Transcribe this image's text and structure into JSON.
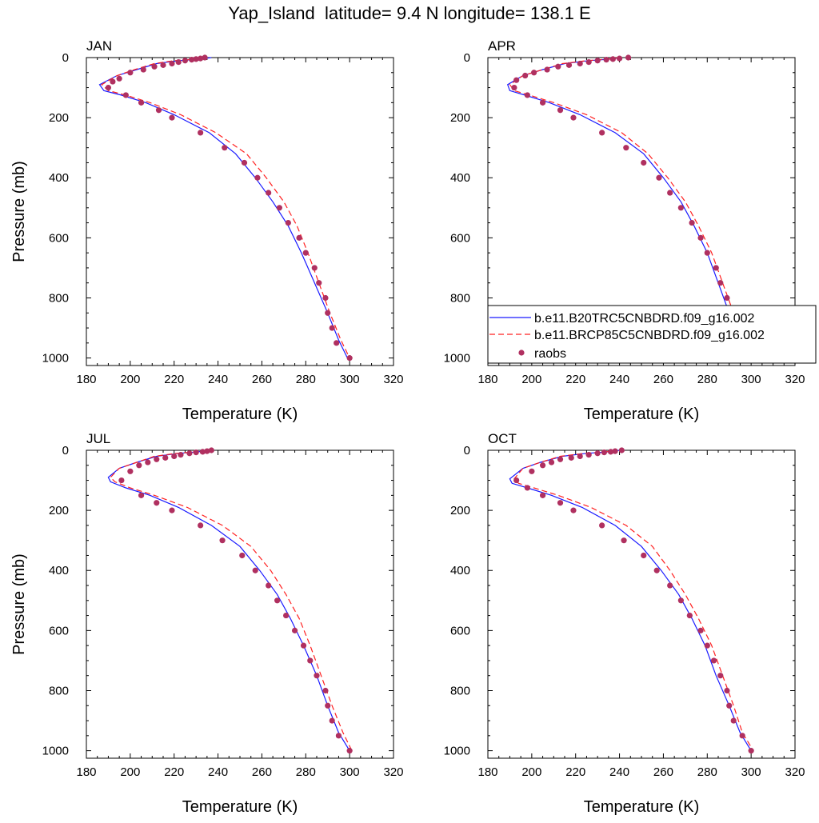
{
  "figure": {
    "title": "Yap_Island  latitude= 9.4 N longitude= 138.1 E"
  },
  "legend": {
    "placement": "inside APR panel, lower-right",
    "entries": [
      {
        "label": "b.e11.B20TRC5CNBDRD.f09_g16.002",
        "style": "solid-line",
        "color": "#1a1aff"
      },
      {
        "label": "b.e11.BRCP85C5CNBDRD.f09_g16.002",
        "style": "dashed-line",
        "color": "#ff2020"
      },
      {
        "label": "raobs",
        "style": "dot",
        "color": "#b03060"
      }
    ]
  },
  "chart_data": [
    {
      "type": "line",
      "panel_label": "JAN",
      "xlabel": "Temperature (K)",
      "ylabel": "Pressure (mb)",
      "xlim": [
        180,
        320
      ],
      "ylim": [
        1025,
        0
      ],
      "xticks": [
        180,
        200,
        220,
        240,
        260,
        280,
        300,
        320
      ],
      "yticks": [
        0,
        200,
        400,
        600,
        800,
        1000
      ],
      "grid": false,
      "series": [
        {
          "name": "b.e11.B20TRC5CNBDRD.f09_g16.002",
          "style": "solid",
          "color": "#1a1aff",
          "x": [
            237,
            232,
            222,
            212,
            203,
            194,
            186,
            188,
            196,
            207,
            220,
            236,
            248,
            257,
            265,
            272,
            278,
            284,
            290,
            295,
            299
          ],
          "y": [
            0,
            5,
            10,
            20,
            40,
            60,
            90,
            110,
            125,
            150,
            190,
            250,
            320,
            400,
            480,
            560,
            650,
            750,
            850,
            940,
            1000
          ]
        },
        {
          "name": "b.e11.BRCP85C5CNBDRD.f09_g16.002",
          "style": "dashed",
          "color": "#ff2020",
          "x": [
            235,
            230,
            220,
            211,
            202,
            194,
            187,
            190,
            198,
            209,
            223,
            239,
            253,
            262,
            270,
            276,
            281,
            286,
            291,
            296,
            300
          ],
          "y": [
            0,
            5,
            10,
            20,
            40,
            60,
            90,
            110,
            125,
            150,
            190,
            250,
            320,
            400,
            480,
            560,
            650,
            750,
            850,
            940,
            1000
          ]
        },
        {
          "name": "raobs",
          "style": "points",
          "color": "#b03060",
          "x": [
            234,
            232,
            230,
            228,
            225,
            222,
            219,
            215,
            211,
            206,
            200,
            195,
            192,
            190,
            198,
            205,
            213,
            219,
            232,
            243,
            252,
            258,
            263,
            268,
            272,
            277,
            280,
            284,
            286,
            289,
            290,
            292,
            294,
            300
          ],
          "y": [
            0,
            3,
            5,
            7,
            10,
            15,
            20,
            25,
            30,
            40,
            50,
            70,
            80,
            100,
            125,
            150,
            175,
            200,
            250,
            300,
            350,
            400,
            450,
            500,
            550,
            600,
            650,
            700,
            750,
            800,
            850,
            900,
            950,
            1000
          ]
        }
      ]
    },
    {
      "type": "line",
      "panel_label": "APR",
      "xlabel": "Temperature (K)",
      "ylabel": "",
      "xlim": [
        180,
        320
      ],
      "ylim": [
        1025,
        0
      ],
      "xticks": [
        180,
        200,
        220,
        240,
        260,
        280,
        300,
        320
      ],
      "yticks": [
        0,
        200,
        400,
        600,
        800,
        1000
      ],
      "grid": false,
      "series": [
        {
          "name": "b.e11.B20TRC5CNBDRD.f09_g16.002",
          "style": "solid",
          "color": "#1a1aff",
          "x": [
            241,
            236,
            226,
            215,
            205,
            196,
            189,
            190,
            197,
            208,
            222,
            238,
            251,
            260,
            268,
            274,
            280,
            285,
            290,
            295,
            300
          ],
          "y": [
            0,
            5,
            10,
            20,
            40,
            60,
            90,
            110,
            125,
            150,
            190,
            250,
            320,
            400,
            480,
            560,
            650,
            750,
            850,
            940,
            1000
          ]
        },
        {
          "name": "b.e11.BRCP85C5CNBDRD.f09_g16.002",
          "style": "dashed",
          "color": "#ff2020",
          "x": [
            240,
            235,
            225,
            214,
            205,
            196,
            190,
            192,
            199,
            210,
            225,
            241,
            253,
            262,
            270,
            276,
            282,
            287,
            292,
            296,
            300
          ],
          "y": [
            0,
            5,
            10,
            20,
            40,
            60,
            90,
            110,
            125,
            150,
            190,
            250,
            320,
            400,
            480,
            560,
            650,
            750,
            850,
            940,
            1000
          ]
        },
        {
          "name": "raobs",
          "style": "points",
          "color": "#b03060",
          "x": [
            244,
            240,
            237,
            234,
            230,
            226,
            222,
            217,
            212,
            207,
            201,
            197,
            193,
            192,
            198,
            205,
            213,
            219,
            232,
            243,
            251,
            258,
            263,
            268,
            273,
            277,
            280,
            284,
            286,
            289,
            290,
            292,
            296,
            300
          ],
          "y": [
            0,
            3,
            5,
            7,
            10,
            15,
            20,
            25,
            30,
            40,
            50,
            60,
            75,
            100,
            125,
            150,
            175,
            200,
            250,
            300,
            350,
            400,
            450,
            500,
            550,
            600,
            650,
            700,
            750,
            800,
            850,
            900,
            950,
            1000
          ]
        }
      ]
    },
    {
      "type": "line",
      "panel_label": "JUL",
      "xlabel": "Temperature (K)",
      "ylabel": "Pressure (mb)",
      "xlim": [
        180,
        320
      ],
      "ylim": [
        1025,
        0
      ],
      "xticks": [
        180,
        200,
        220,
        240,
        260,
        280,
        300,
        320
      ],
      "yticks": [
        0,
        200,
        400,
        600,
        800,
        1000
      ],
      "grid": false,
      "series": [
        {
          "name": "b.e11.B20TRC5CNBDRD.f09_g16.002",
          "style": "solid",
          "color": "#1a1aff",
          "x": [
            236,
            231,
            222,
            212,
            203,
            195,
            190,
            191,
            198,
            209,
            222,
            237,
            250,
            259,
            267,
            273,
            279,
            285,
            290,
            295,
            300
          ],
          "y": [
            0,
            5,
            10,
            20,
            40,
            60,
            90,
            105,
            125,
            150,
            190,
            250,
            320,
            400,
            480,
            560,
            650,
            750,
            850,
            940,
            1000
          ]
        },
        {
          "name": "b.e11.BRCP85C5CNBDRD.f09_g16.002",
          "style": "dashed",
          "color": "#ff2020",
          "x": [
            235,
            230,
            221,
            211,
            203,
            195,
            191,
            193,
            200,
            211,
            226,
            242,
            255,
            264,
            271,
            277,
            282,
            287,
            292,
            297,
            301
          ],
          "y": [
            0,
            5,
            10,
            20,
            40,
            60,
            90,
            105,
            125,
            150,
            190,
            250,
            320,
            400,
            480,
            560,
            650,
            750,
            850,
            940,
            1000
          ]
        },
        {
          "name": "raobs",
          "style": "points",
          "color": "#b03060",
          "x": [
            237,
            235,
            233,
            230,
            227,
            223,
            220,
            216,
            212,
            208,
            204,
            200,
            196,
            205,
            212,
            219,
            232,
            242,
            251,
            257,
            263,
            267,
            271,
            275,
            279,
            282,
            285,
            289,
            290,
            292,
            295,
            300
          ],
          "y": [
            0,
            3,
            5,
            7,
            10,
            15,
            20,
            25,
            30,
            40,
            50,
            70,
            100,
            150,
            175,
            200,
            250,
            300,
            350,
            400,
            450,
            500,
            550,
            600,
            650,
            700,
            750,
            800,
            850,
            900,
            950,
            1000
          ]
        }
      ]
    },
    {
      "type": "line",
      "panel_label": "OCT",
      "xlabel": "Temperature (K)",
      "ylabel": "",
      "xlim": [
        180,
        320
      ],
      "ylim": [
        1025,
        0
      ],
      "xticks": [
        180,
        200,
        220,
        240,
        260,
        280,
        300,
        320
      ],
      "yticks": [
        0,
        200,
        400,
        600,
        800,
        1000
      ],
      "grid": false,
      "series": [
        {
          "name": "b.e11.B20TRC5CNBDRD.f09_g16.002",
          "style": "solid",
          "color": "#1a1aff",
          "x": [
            240,
            235,
            225,
            214,
            204,
            196,
            190,
            191,
            198,
            209,
            223,
            238,
            250,
            259,
            267,
            273,
            279,
            284,
            290,
            295,
            300
          ],
          "y": [
            0,
            5,
            10,
            20,
            40,
            60,
            95,
            110,
            125,
            150,
            190,
            250,
            320,
            400,
            480,
            560,
            650,
            750,
            850,
            940,
            1000
          ]
        },
        {
          "name": "b.e11.BRCP85C5CNBDRD.f09_g16.002",
          "style": "dashed",
          "color": "#ff2020",
          "x": [
            239,
            234,
            224,
            213,
            204,
            196,
            192,
            194,
            201,
            212,
            227,
            243,
            255,
            263,
            270,
            276,
            282,
            287,
            292,
            296,
            301
          ],
          "y": [
            0,
            5,
            10,
            20,
            40,
            60,
            95,
            110,
            125,
            150,
            190,
            250,
            320,
            400,
            480,
            560,
            650,
            750,
            850,
            940,
            1000
          ]
        },
        {
          "name": "raobs",
          "style": "points",
          "color": "#b03060",
          "x": [
            241,
            238,
            236,
            233,
            230,
            226,
            222,
            218,
            213,
            209,
            205,
            200,
            193,
            198,
            205,
            213,
            219,
            232,
            242,
            251,
            257,
            263,
            268,
            272,
            277,
            280,
            283,
            286,
            289,
            290,
            292,
            296,
            300
          ],
          "y": [
            0,
            3,
            5,
            7,
            10,
            15,
            20,
            25,
            30,
            40,
            50,
            70,
            100,
            125,
            150,
            175,
            200,
            250,
            300,
            350,
            400,
            450,
            500,
            550,
            600,
            650,
            700,
            750,
            800,
            850,
            900,
            950,
            1000
          ]
        }
      ]
    }
  ]
}
